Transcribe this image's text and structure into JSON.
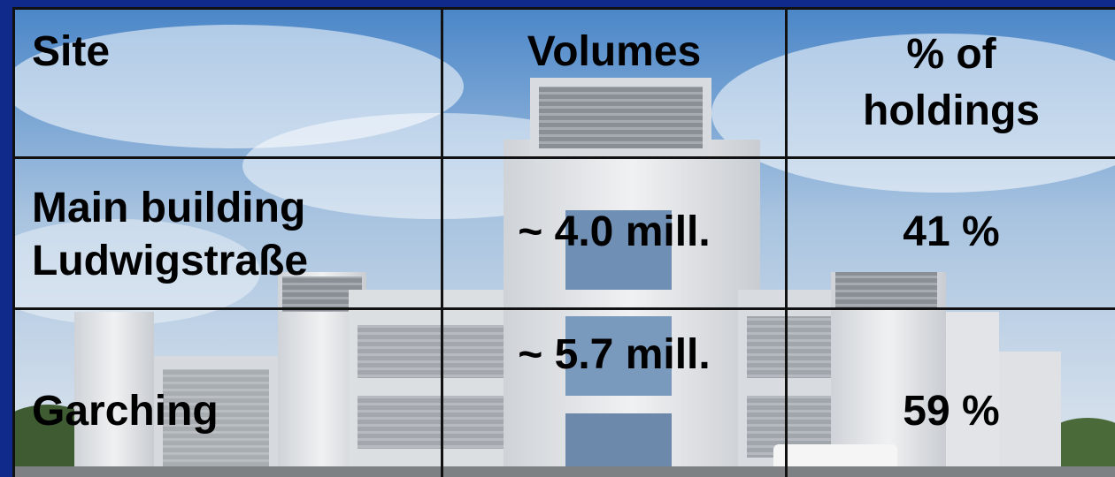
{
  "table": {
    "headers": [
      "Site",
      "Volumes",
      [
        "% of",
        "holdings"
      ]
    ],
    "rows": [
      {
        "site": [
          "Main building",
          "Ludwigstraße"
        ],
        "volumes": "~ 4.0 mill.",
        "percent": "41 %"
      },
      {
        "site": [
          "Garching"
        ],
        "volumes": "~ 5.7 mill.",
        "percent": "59 %"
      }
    ]
  },
  "colors": {
    "frame": "#0f2a8a",
    "sky": "#8fb2d8",
    "building": "#e6e8ea",
    "grid_lines": "#111111",
    "text": "#000000"
  }
}
